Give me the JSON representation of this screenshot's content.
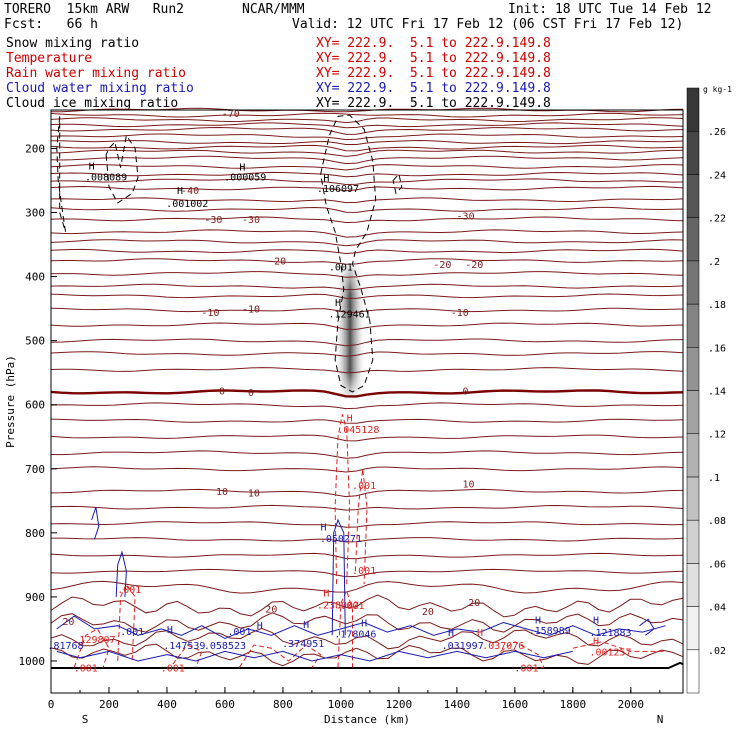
{
  "header": {
    "model": "TORERO  15km ARW   Run2",
    "org": "NCAR/MMM",
    "init": "Init: 18 UTC Tue 14 Feb 12",
    "fcst": "Fcst:   66 h",
    "valid": "Valid: 12 UTC Fri 17 Feb 12 (06 CST Fri 17 Feb 12)"
  },
  "legend": [
    {
      "label": "Snow mixing ratio",
      "xy": "",
      "color": "#000000"
    },
    {
      "label": "Temperature",
      "xy": "XY= 222.9.  5.1 to 222.9.149.8",
      "color": "#cc0000"
    },
    {
      "label": "Rain water mixing ratio",
      "xy": "XY= 222.9.  5.1 to 222.9.149.8",
      "color": "#cc0000"
    },
    {
      "label": "Cloud water mixing ratio",
      "xy": "XY= 222.9.  5.1 to 222.9.149.8",
      "color": "#0000bb"
    },
    {
      "label": "Cloud ice mixing ratio",
      "xy": "XY= 222.9.  5.1 to 222.9.149.8",
      "color": "#000000"
    }
  ],
  "legend_first_xy": "XY= 222.9.  5.1 to 222.9.149.8",
  "colors": {
    "temperature": "#7a1a1a",
    "freezing": "#7a0000",
    "rain": "#e02020",
    "cloud_water": "#1a1ab0",
    "cloud_ice": "#000000",
    "snow": "#555555"
  },
  "chart_data": {
    "type": "contour",
    "xlabel": "Distance (km)",
    "ylabel": "Pressure (hPa)",
    "xlim": [
      0,
      2180
    ],
    "ylim": [
      1050,
      140
    ],
    "x_ticks": [
      "0",
      "200",
      "400",
      "600",
      "800",
      "1000",
      "1200",
      "1400",
      "1600",
      "1800",
      "2000"
    ],
    "y_ticks": [
      "200",
      "300",
      "400",
      "500",
      "600",
      "700",
      "800",
      "900",
      "1000"
    ],
    "side_labels": {
      "left": "S",
      "right": "N"
    },
    "temperature_isotherms_C": [
      -70,
      -60,
      -50,
      -40,
      -30,
      -20,
      -10,
      0,
      10,
      20
    ],
    "temperature_labels": [
      {
        "text": "-70",
        "x": 620,
        "p": 145
      },
      {
        "text": "-40",
        "x": 480,
        "p": 265
      },
      {
        "text": "-30",
        "x": 560,
        "p": 310
      },
      {
        "text": "-30",
        "x": 690,
        "p": 310
      },
      {
        "text": "-30",
        "x": 1430,
        "p": 305
      },
      {
        "text": "-20",
        "x": 780,
        "p": 375
      },
      {
        "text": "-20",
        "x": 1350,
        "p": 380
      },
      {
        "text": "-20",
        "x": 1460,
        "p": 380
      },
      {
        "text": "-10",
        "x": 550,
        "p": 455
      },
      {
        "text": "-10",
        "x": 690,
        "p": 450
      },
      {
        "text": "-10",
        "x": 1410,
        "p": 455
      },
      {
        "text": "0",
        "x": 590,
        "p": 578
      },
      {
        "text": "0",
        "x": 690,
        "p": 580
      },
      {
        "text": "0",
        "x": 1430,
        "p": 578
      },
      {
        "text": "10",
        "x": 590,
        "p": 735
      },
      {
        "text": "10",
        "x": 700,
        "p": 737
      },
      {
        "text": "10",
        "x": 1440,
        "p": 723
      },
      {
        "text": "20",
        "x": 760,
        "p": 918
      },
      {
        "text": "20",
        "x": 1300,
        "p": 922
      },
      {
        "text": "20",
        "x": 1460,
        "p": 908
      },
      {
        "text": "20",
        "x": 60,
        "p": 938
      }
    ],
    "maxima_labels": [
      {
        "text": "H",
        "x": 140,
        "p": 227,
        "color": "black"
      },
      {
        "text": ".008089",
        "x": 190,
        "p": 244,
        "color": "black"
      },
      {
        "text": "H",
        "x": 660,
        "p": 228,
        "color": "black"
      },
      {
        "text": ".000059",
        "x": 670,
        "p": 244,
        "color": "black"
      },
      {
        "text": "H",
        "x": 445,
        "p": 265,
        "color": "black"
      },
      {
        "text": ".001002",
        "x": 470,
        "p": 285,
        "color": "black"
      },
      {
        "text": "H",
        "x": 950,
        "p": 245,
        "color": "black"
      },
      {
        "text": ".106097",
        "x": 990,
        "p": 262,
        "color": "black"
      },
      {
        "text": ".001",
        "x": 1000,
        "p": 384,
        "color": "black"
      },
      {
        "text": "H",
        "x": 990,
        "p": 440,
        "color": "black"
      },
      {
        "text": ".129461",
        "x": 1030,
        "p": 458,
        "color": "black"
      },
      {
        "text": "H",
        "x": 1030,
        "p": 620,
        "color": "red"
      },
      {
        "text": ".045128",
        "x": 1060,
        "p": 638,
        "color": "red"
      },
      {
        "text": ".001",
        "x": 1080,
        "p": 725,
        "color": "red"
      },
      {
        "text": "H",
        "x": 950,
        "p": 893,
        "color": "red"
      },
      {
        "text": ".238002",
        "x": 990,
        "p": 912,
        "color": "red"
      },
      {
        "text": ".001",
        "x": 1040,
        "p": 913,
        "color": "red"
      },
      {
        "text": ".001",
        "x": 1080,
        "p": 858,
        "color": "red"
      },
      {
        "text": ".001",
        "x": 270,
        "p": 888,
        "color": "red"
      },
      {
        "text": "H",
        "x": 940,
        "p": 790,
        "color": "blue"
      },
      {
        "text": ".050271",
        "x": 1000,
        "p": 808,
        "color": "blue"
      },
      {
        "text": "H",
        "x": 1080,
        "p": 940,
        "color": "blue"
      },
      {
        "text": ".178046",
        "x": 1050,
        "p": 957,
        "color": "blue"
      },
      {
        "text": "H",
        "x": 880,
        "p": 942,
        "color": "blue"
      },
      {
        "text": ".374951",
        "x": 870,
        "p": 972,
        "color": "blue"
      },
      {
        "text": "H",
        "x": 720,
        "p": 944,
        "color": "blue"
      },
      {
        "text": ".058523",
        "x": 600,
        "p": 975,
        "color": "blue"
      },
      {
        "text": ".001",
        "x": 650,
        "p": 953,
        "color": "blue"
      },
      {
        "text": "H",
        "x": 410,
        "p": 950,
        "color": "blue"
      },
      {
        "text": ".147539",
        "x": 460,
        "p": 975,
        "color": "blue"
      },
      {
        "text": ".001",
        "x": 280,
        "p": 953,
        "color": "blue"
      },
      {
        "text": ".129807",
        "x": 150,
        "p": 966,
        "color": "red"
      },
      {
        "text": ".81768",
        "x": 50,
        "p": 975,
        "color": "blue"
      },
      {
        "text": ".001",
        "x": 120,
        "p": 1010,
        "color": "red"
      },
      {
        "text": ".001",
        "x": 420,
        "p": 1010,
        "color": "red"
      },
      {
        "text": "H",
        "x": 1380,
        "p": 955,
        "color": "blue"
      },
      {
        "text": ".031997",
        "x": 1420,
        "p": 975,
        "color": "blue"
      },
      {
        "text": "H",
        "x": 1480,
        "p": 955,
        "color": "red"
      },
      {
        "text": ".037076",
        "x": 1560,
        "p": 975,
        "color": "red"
      },
      {
        "text": "H",
        "x": 1680,
        "p": 935,
        "color": "blue"
      },
      {
        "text": ".158989",
        "x": 1720,
        "p": 952,
        "color": "blue"
      },
      {
        "text": "H",
        "x": 1880,
        "p": 935,
        "color": "blue"
      },
      {
        "text": ".121883",
        "x": 1930,
        "p": 955,
        "color": "blue"
      },
      {
        "text": "H",
        "x": 1880,
        "p": 968,
        "color": "red"
      },
      {
        "text": ".001257",
        "x": 1930,
        "p": 985,
        "color": "red"
      },
      {
        "text": ".001",
        "x": 1640,
        "p": 1010,
        "color": "red"
      }
    ],
    "colorbar": {
      "unit": "g kg-1",
      "levels": [
        ".02",
        ".04",
        ".06",
        ".08",
        ".1",
        ".12",
        ".14",
        ".16",
        ".18",
        ".2",
        ".22",
        ".24",
        ".26"
      ],
      "range": [
        0,
        0.28
      ]
    }
  }
}
